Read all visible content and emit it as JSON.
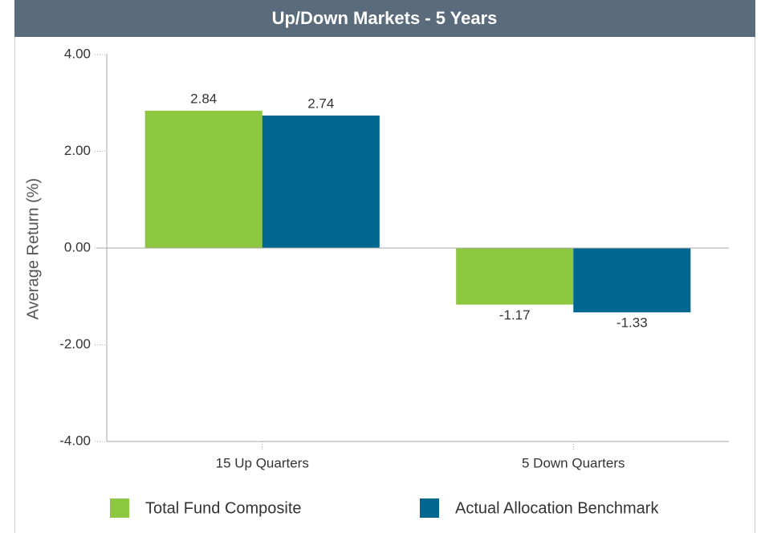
{
  "chart_data": {
    "type": "bar",
    "title": "Up/Down Markets - 5 Years",
    "y_label": "Average Return (%)",
    "categories": [
      "15 Up Quarters",
      "5 Down Quarters"
    ],
    "series": [
      {
        "name": "Total Fund Composite",
        "color": "#8dc63f",
        "values": [
          2.84,
          -1.17
        ]
      },
      {
        "name": "Actual Allocation Benchmark",
        "color": "#006890",
        "values": [
          2.74,
          -1.33
        ]
      }
    ],
    "ylim": [
      -4,
      4
    ],
    "yticks": [
      {
        "value": -4,
        "label": "-4.00"
      },
      {
        "value": -2,
        "label": "-2.00"
      },
      {
        "value": 0,
        "label": "0.00"
      },
      {
        "value": 2,
        "label": "2.00"
      },
      {
        "value": 4,
        "label": "4.00"
      }
    ],
    "legend": "bottom"
  }
}
